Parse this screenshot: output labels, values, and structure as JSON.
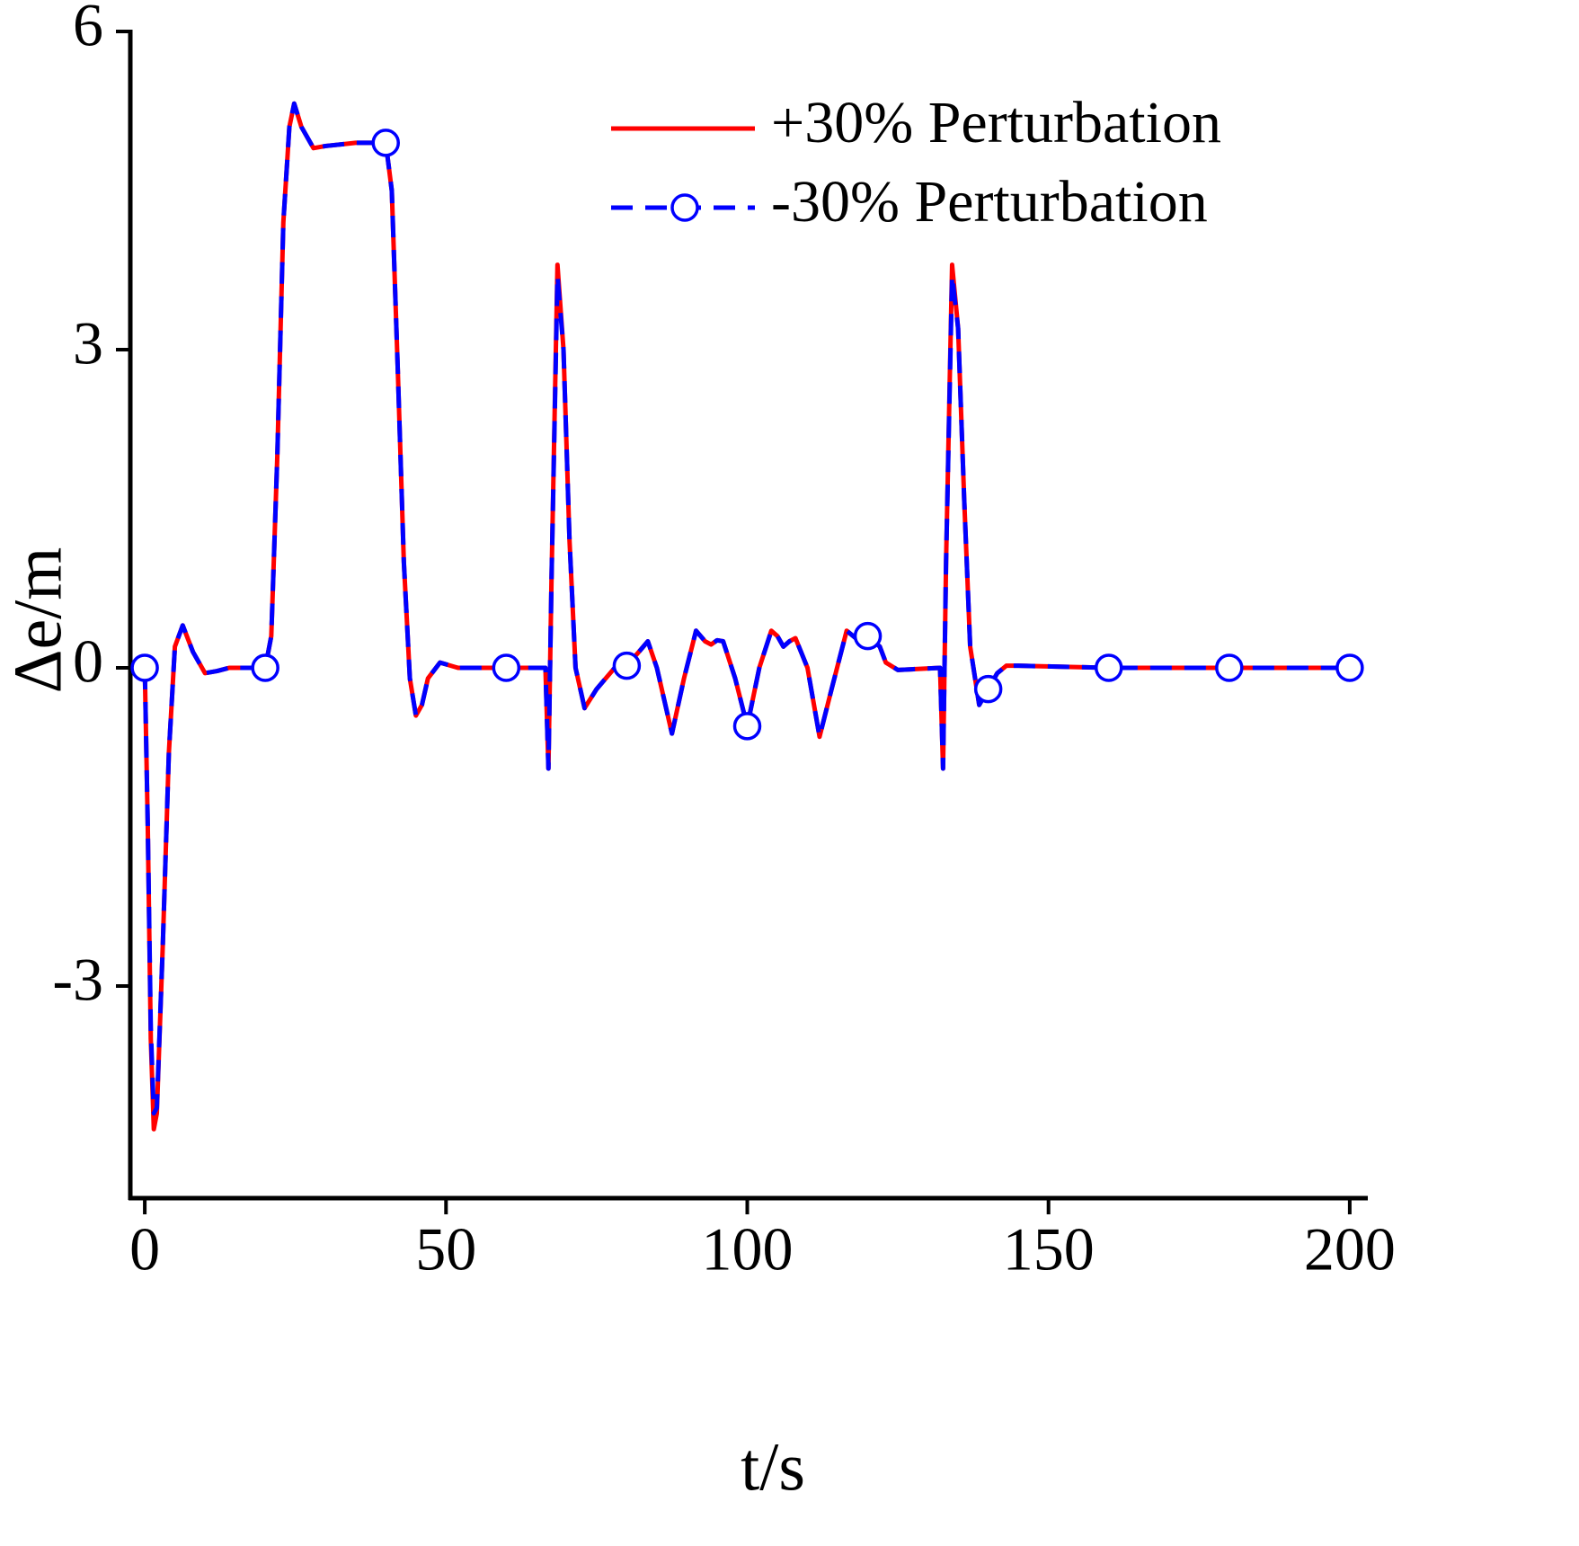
{
  "chart_data": {
    "type": "line",
    "x_label": "t/s",
    "y_label": "Δe/m",
    "xlim": [
      -2.4,
      203
    ],
    "ylim": [
      -5,
      6
    ],
    "xticks": [
      0,
      50,
      100,
      150,
      200
    ],
    "yticks": [
      -3,
      0,
      3,
      6
    ],
    "legend": "upper right",
    "x": [
      0,
      0.5,
      1,
      1.5,
      2,
      3,
      4,
      5,
      6.3,
      8,
      10,
      12,
      14,
      20,
      21,
      22,
      23,
      24,
      24.8,
      26,
      28,
      30,
      35,
      40,
      41,
      42,
      43,
      44,
      45,
      46,
      47,
      49,
      52,
      60,
      66.5,
      67,
      67.5,
      68.5,
      69.5,
      70.5,
      71.5,
      73,
      75,
      78,
      80,
      82,
      83.5,
      85,
      87.5,
      89.5,
      91.5,
      93,
      94,
      95,
      96,
      98,
      100,
      102,
      104,
      105,
      106,
      107,
      108,
      110,
      112,
      114,
      116.5,
      118,
      119,
      120,
      122,
      123,
      125,
      132,
      132.5,
      133,
      134,
      135,
      136,
      137,
      138.5,
      140,
      141.5,
      143,
      145,
      160,
      180,
      200
    ],
    "series": [
      {
        "name": "+30% Perturbation",
        "color": "#ff0000",
        "dash": false,
        "values": [
          0,
          -1.5,
          -3.5,
          -4.35,
          -4.2,
          -2.6,
          -0.8,
          0.2,
          0.4,
          0.15,
          -0.05,
          -0.03,
          0,
          0,
          0.3,
          2.0,
          4.2,
          5.1,
          5.32,
          5.1,
          4.9,
          4.92,
          4.95,
          4.95,
          4.5,
          2.8,
          1.0,
          -0.1,
          -0.45,
          -0.35,
          -0.1,
          0.05,
          0,
          0,
          0,
          -0.95,
          0.8,
          3.8,
          3.0,
          1.2,
          0.0,
          -0.38,
          -0.2,
          0.0,
          0.02,
          0.15,
          0.25,
          0.0,
          -0.62,
          -0.1,
          0.35,
          0.25,
          0.22,
          0.26,
          0.25,
          -0.1,
          -0.55,
          0.0,
          0.35,
          0.3,
          0.2,
          0.25,
          0.28,
          0.0,
          -0.65,
          -0.2,
          0.35,
          0.28,
          0.25,
          0.3,
          0.2,
          0.05,
          -0.02,
          0,
          -0.95,
          1.0,
          3.8,
          3.2,
          1.6,
          0.2,
          -0.35,
          -0.2,
          -0.05,
          0.02,
          0.02,
          0,
          0,
          0
        ]
      },
      {
        "name": "-30% Perturbation",
        "color": "#0000ff",
        "dash": true,
        "marker_every": 20,
        "values": [
          0,
          -1.5,
          -3.4,
          -4.2,
          -4.15,
          -2.6,
          -0.8,
          0.2,
          0.4,
          0.15,
          -0.05,
          -0.03,
          0,
          0,
          0.3,
          2.0,
          4.2,
          5.1,
          5.32,
          5.1,
          4.9,
          4.92,
          4.95,
          4.95,
          4.5,
          2.8,
          1.0,
          -0.1,
          -0.45,
          -0.35,
          -0.1,
          0.05,
          0,
          0,
          0,
          -0.95,
          0.8,
          3.7,
          3.0,
          1.2,
          0.0,
          -0.38,
          -0.2,
          0.0,
          0.02,
          0.15,
          0.25,
          0.0,
          -0.62,
          -0.1,
          0.35,
          0.25,
          0.22,
          0.26,
          0.25,
          -0.1,
          -0.55,
          0.0,
          0.35,
          0.3,
          0.2,
          0.25,
          0.28,
          0.0,
          -0.65,
          -0.2,
          0.35,
          0.28,
          0.25,
          0.3,
          0.2,
          0.05,
          -0.02,
          0,
          -0.95,
          1.0,
          3.7,
          3.2,
          1.6,
          0.2,
          -0.35,
          -0.2,
          -0.05,
          0.02,
          0.02,
          0,
          0,
          0
        ]
      }
    ]
  }
}
